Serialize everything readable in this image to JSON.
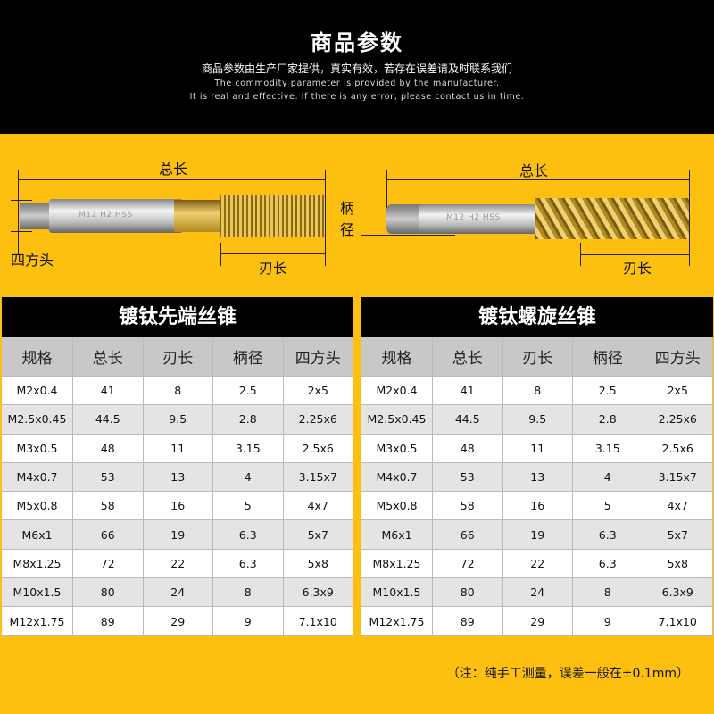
{
  "header": {
    "title": "商品参数",
    "subtitle_cn": "商品参数由生产厂家提供，真实有效，若存在误差请及时联系我们",
    "subtitle_en_1": "The commodity parameter is provided by the manufacturer.",
    "subtitle_en_2": "It is real and effective. If there is any error, please contact us in time."
  },
  "diagram": {
    "total_length": "总长",
    "blade_length": "刃长",
    "shank_dia": "柄径",
    "square_head": "四方头",
    "left_tool_marking": "M12 H2 HSS",
    "right_tool_marking": "M12 H2 HSS"
  },
  "columns": [
    "规格",
    "总长",
    "刃长",
    "柄径",
    "四方头"
  ],
  "tables": [
    {
      "title": "镀钛先端丝锥",
      "rows": [
        [
          "M2x0.4",
          "41",
          "8",
          "2.5",
          "2x5"
        ],
        [
          "M2.5x0.45",
          "44.5",
          "9.5",
          "2.8",
          "2.25x6"
        ],
        [
          "M3x0.5",
          "48",
          "11",
          "3.15",
          "2.5x6"
        ],
        [
          "M4x0.7",
          "53",
          "13",
          "4",
          "3.15x7"
        ],
        [
          "M5x0.8",
          "58",
          "16",
          "5",
          "4x7"
        ],
        [
          "M6x1",
          "66",
          "19",
          "6.3",
          "5x7"
        ],
        [
          "M8x1.25",
          "72",
          "22",
          "6.3",
          "5x8"
        ],
        [
          "M10x1.5",
          "80",
          "24",
          "8",
          "6.3x9"
        ],
        [
          "M12x1.75",
          "89",
          "29",
          "9",
          "7.1x10"
        ]
      ]
    },
    {
      "title": "镀钛螺旋丝锥",
      "rows": [
        [
          "M2x0.4",
          "41",
          "8",
          "2.5",
          "2x5"
        ],
        [
          "M2.5x0.45",
          "44.5",
          "9.5",
          "2.8",
          "2.25x6"
        ],
        [
          "M3x0.5",
          "48",
          "11",
          "3.15",
          "2.5x6"
        ],
        [
          "M4x0.7",
          "53",
          "13",
          "4",
          "3.15x7"
        ],
        [
          "M5x0.8",
          "58",
          "16",
          "5",
          "4x7"
        ],
        [
          "M6x1",
          "66",
          "19",
          "6.3",
          "5x7"
        ],
        [
          "M8x1.25",
          "72",
          "22",
          "6.3",
          "5x8"
        ],
        [
          "M10x1.5",
          "80",
          "24",
          "8",
          "6.3x9"
        ],
        [
          "M12x1.75",
          "89",
          "29",
          "9",
          "7.1x10"
        ]
      ]
    }
  ],
  "note": "（注：纯手工测量，误差一般在±0.1mm）",
  "colors": {
    "background": "#fdc010",
    "header": "#000000"
  }
}
